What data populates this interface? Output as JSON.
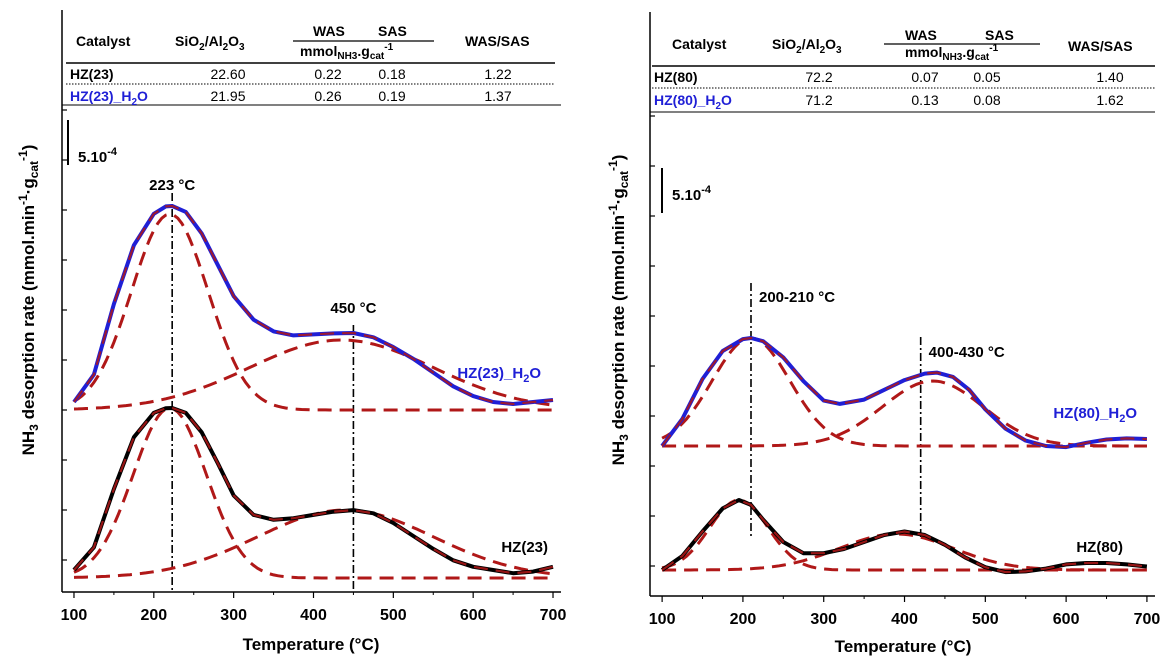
{
  "chart_data": [
    {
      "type": "line",
      "xlabel": "Temperature (°C)",
      "ylabel": "NH3 desorption rate (mmol.min-1.gcat-1)",
      "ylabel_parts": [
        "NH",
        "3",
        " desorption rate (mmol.min",
        "-1",
        "·g",
        "cat",
        "-1",
        ")"
      ],
      "xlim": [
        85,
        710
      ],
      "x_ticks": [
        100,
        200,
        300,
        400,
        500,
        600,
        700
      ],
      "scale_bar_label": "5.10",
      "scale_bar_exp": "-4",
      "annotations": [
        {
          "text": "223 °C",
          "x": 223
        },
        {
          "text": "450 °C",
          "x": 450
        }
      ],
      "table": {
        "headers": [
          "Catalyst",
          "SiO2/Al2O3",
          "WAS",
          "SAS",
          "mmolNH3.gcat-1",
          "WAS/SAS"
        ],
        "rows": [
          {
            "catalyst": "HZ(23)",
            "sio2_al2o3": "22.60",
            "was": "0.22",
            "sas": "0.18",
            "ratio": "1.22",
            "color": "#000000"
          },
          {
            "catalyst": "HZ(23)_H2O",
            "sio2_al2o3": "21.95",
            "was": "0.26",
            "sas": "0.19",
            "ratio": "1.37",
            "color": "#1f1fd6"
          }
        ]
      },
      "series": [
        {
          "name": "HZ(23)_H2O",
          "color": "#1f1fd6",
          "label_x": 600,
          "x": [
            100,
            125,
            150,
            175,
            200,
            215,
            223,
            240,
            260,
            280,
            300,
            325,
            350,
            375,
            400,
            425,
            450,
            475,
            500,
            525,
            550,
            575,
            600,
            625,
            650,
            675,
            700
          ],
          "y": [
            0.0,
            0.14,
            0.5,
            0.8,
            0.96,
            0.998,
            1.0,
            0.97,
            0.86,
            0.7,
            0.54,
            0.42,
            0.36,
            0.34,
            0.345,
            0.35,
            0.352,
            0.33,
            0.28,
            0.22,
            0.15,
            0.08,
            0.03,
            0.0,
            -0.01,
            0.0,
            0.01
          ]
        },
        {
          "name": "HZ(23)",
          "color": "#000000",
          "label_x": 600,
          "x": [
            100,
            125,
            150,
            175,
            200,
            215,
            223,
            240,
            260,
            280,
            300,
            325,
            350,
            375,
            400,
            425,
            450,
            475,
            500,
            525,
            550,
            575,
            600,
            625,
            650,
            675,
            700
          ],
          "y": [
            0.0,
            0.14,
            0.5,
            0.82,
            0.97,
            0.998,
            1.0,
            0.97,
            0.85,
            0.66,
            0.46,
            0.34,
            0.31,
            0.32,
            0.34,
            0.36,
            0.37,
            0.35,
            0.29,
            0.21,
            0.13,
            0.06,
            0.02,
            0.0,
            -0.02,
            -0.01,
            0.02
          ]
        }
      ]
    },
    {
      "type": "line",
      "xlabel": "Temperature (°C)",
      "ylabel": "NH3 desorption rate (mmol.min-1.gcat-1)",
      "ylabel_parts": [
        "NH",
        "3",
        " desorption rate (mmol.min",
        "-1",
        "·g",
        "cat",
        "-1",
        ")"
      ],
      "xlim": [
        85,
        710
      ],
      "x_ticks": [
        100,
        200,
        300,
        400,
        500,
        600,
        700
      ],
      "scale_bar_label": "5.10",
      "scale_bar_exp": "-4",
      "annotations": [
        {
          "text": "200-210 °C",
          "x": 210
        },
        {
          "text": "400-430 °C",
          "x": 420
        }
      ],
      "table": {
        "headers": [
          "Catalyst",
          "SiO2/Al2O3",
          "WAS",
          "SAS",
          "mmolNH3.gcat-1",
          "WAS/SAS"
        ],
        "rows": [
          {
            "catalyst": "HZ(80)",
            "sio2_al2o3": "72.2",
            "was": "0.07",
            "sas": "0.05",
            "ratio": "1.40",
            "color": "#000000"
          },
          {
            "catalyst": "HZ(80)_H2O",
            "sio2_al2o3": "71.2",
            "was": "0.13",
            "sas": "0.08",
            "ratio": "1.62",
            "color": "#1f1fd6"
          }
        ]
      },
      "series": [
        {
          "name": "HZ(80)_H2O",
          "color": "#1f1fd6",
          "label_x": 610,
          "x": [
            100,
            125,
            150,
            175,
            200,
            210,
            225,
            250,
            275,
            300,
            320,
            350,
            375,
            400,
            425,
            440,
            460,
            480,
            500,
            525,
            550,
            575,
            600,
            625,
            650,
            675,
            700
          ],
          "y": [
            0.0,
            0.25,
            0.62,
            0.88,
            0.99,
            1.0,
            0.97,
            0.82,
            0.6,
            0.42,
            0.39,
            0.43,
            0.52,
            0.61,
            0.67,
            0.68,
            0.64,
            0.52,
            0.34,
            0.16,
            0.05,
            0.0,
            -0.01,
            0.03,
            0.06,
            0.07,
            0.065
          ]
        },
        {
          "name": "HZ(80)",
          "color": "#000000",
          "label_x": 610,
          "x": [
            100,
            125,
            150,
            175,
            195,
            210,
            225,
            250,
            275,
            300,
            325,
            350,
            375,
            400,
            425,
            450,
            475,
            500,
            525,
            550,
            575,
            600,
            625,
            650,
            675,
            700
          ],
          "y": [
            0.0,
            0.2,
            0.55,
            0.88,
            1.0,
            0.93,
            0.72,
            0.4,
            0.24,
            0.24,
            0.3,
            0.4,
            0.5,
            0.55,
            0.5,
            0.36,
            0.18,
            0.04,
            -0.03,
            -0.02,
            0.02,
            0.08,
            0.1,
            0.1,
            0.08,
            0.05
          ]
        }
      ]
    }
  ]
}
